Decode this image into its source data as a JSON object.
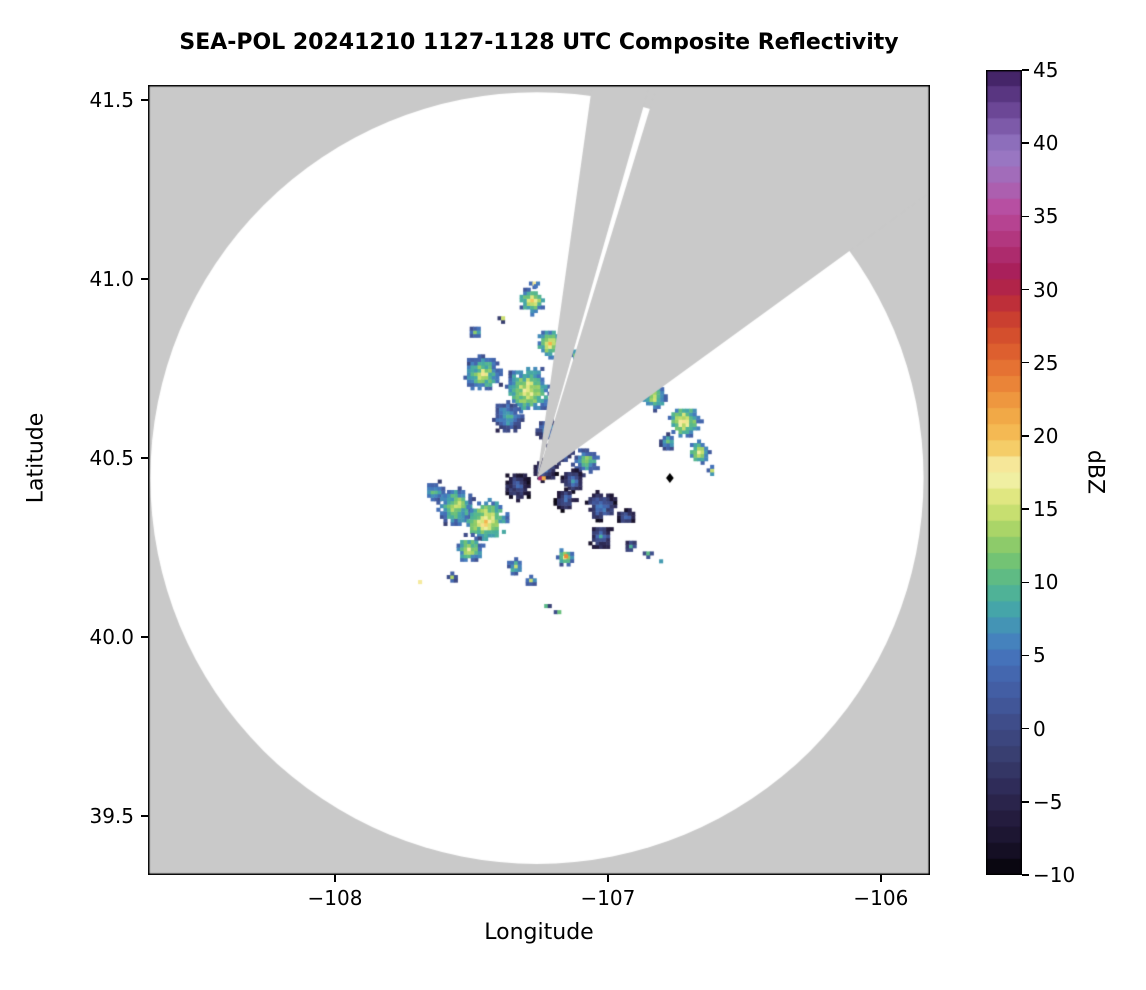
{
  "figure": {
    "title": "SEA-POL 20241210 1127-1128 UTC Composite Reflectivity",
    "background_color": "#ffffff",
    "no_data_color": "#c9c9c9",
    "coverage_color": "#ffffff"
  },
  "axes": {
    "xlabel": "Longitude",
    "ylabel": "Latitude",
    "xlim": [
      -108.685,
      -105.82
    ],
    "ylim": [
      39.335,
      41.542
    ],
    "xticks": [
      {
        "value": -108,
        "label": "−108"
      },
      {
        "value": -107,
        "label": "−107"
      },
      {
        "value": -106,
        "label": "−106"
      }
    ],
    "yticks": [
      {
        "value": 41.5,
        "label": "41.5"
      },
      {
        "value": 41.0,
        "label": "41.0"
      },
      {
        "value": 40.5,
        "label": "40.5"
      },
      {
        "value": 40.0,
        "label": "40.0"
      },
      {
        "value": 39.5,
        "label": "39.5"
      }
    ]
  },
  "colorbar": {
    "label": "dBZ",
    "min": -10,
    "max": 45,
    "ticks": [
      {
        "value": 45,
        "label": "45"
      },
      {
        "value": 40,
        "label": "40"
      },
      {
        "value": 35,
        "label": "35"
      },
      {
        "value": 30,
        "label": "30"
      },
      {
        "value": 25,
        "label": "25"
      },
      {
        "value": 20,
        "label": "20"
      },
      {
        "value": 15,
        "label": "15"
      },
      {
        "value": 10,
        "label": "10"
      },
      {
        "value": 5,
        "label": "5"
      },
      {
        "value": 0,
        "label": "0"
      },
      {
        "value": -5,
        "label": "−5"
      },
      {
        "value": -10,
        "label": "−10"
      }
    ],
    "colormap_stops": [
      [
        -10,
        "#050308"
      ],
      [
        -8,
        "#18122a"
      ],
      [
        -6,
        "#251d40"
      ],
      [
        -4,
        "#2f2c58"
      ],
      [
        -2,
        "#383d6e"
      ],
      [
        0,
        "#3e4a85"
      ],
      [
        2,
        "#42599d"
      ],
      [
        4,
        "#4469b1"
      ],
      [
        5,
        "#4574bb"
      ],
      [
        6,
        "#4583bd"
      ],
      [
        7,
        "#4493b6"
      ],
      [
        8,
        "#44a3ab"
      ],
      [
        9,
        "#4cb09b"
      ],
      [
        10,
        "#59b98a"
      ],
      [
        11,
        "#6ac07a"
      ],
      [
        12,
        "#7fc76d"
      ],
      [
        13,
        "#98cf67"
      ],
      [
        14,
        "#b3d868"
      ],
      [
        15,
        "#cee173"
      ],
      [
        16,
        "#e3e883"
      ],
      [
        17,
        "#f1efa4"
      ],
      [
        18,
        "#f6e89b"
      ],
      [
        19,
        "#f5d06b"
      ],
      [
        20,
        "#f4bd55"
      ],
      [
        21.5,
        "#f1a746"
      ],
      [
        23,
        "#ed8d3b"
      ],
      [
        24.5,
        "#e67433"
      ],
      [
        26,
        "#db5b2e"
      ],
      [
        27.5,
        "#cf452c"
      ],
      [
        29,
        "#bf3038"
      ],
      [
        30,
        "#b32546"
      ],
      [
        31,
        "#a81e57"
      ],
      [
        32.5,
        "#ae2c6f"
      ],
      [
        34,
        "#b53d89"
      ],
      [
        35.5,
        "#b94da0"
      ],
      [
        37,
        "#a962b2"
      ],
      [
        38.5,
        "#9d74c0"
      ],
      [
        39.5,
        "#9579c4"
      ],
      [
        41,
        "#7f5cab"
      ],
      [
        42.5,
        "#684392"
      ],
      [
        44,
        "#4e2c74"
      ],
      [
        45,
        "#3a1d5c"
      ]
    ]
  },
  "chart_data": {
    "type": "heatmap",
    "title": "SEA-POL 20241210 1127-1128 UTC Composite Reflectivity",
    "xlabel": "Longitude",
    "ylabel": "Latitude",
    "units": "dBZ",
    "value_range": [
      -10,
      45
    ],
    "radar": {
      "lon": -107.26,
      "lat": 40.444,
      "range_km": 120
    },
    "blocked_sectors_azimuth_deg": [
      [
        8,
        16
      ],
      [
        17,
        54
      ]
    ],
    "site_marker": {
      "lon": -106.773,
      "lat": 40.444,
      "symbol": "diamond",
      "color": "#000000"
    },
    "echoes": [
      {
        "lon": -107.27,
        "lat": 40.988,
        "radius_deg": 0.015,
        "dbz": 14
      },
      {
        "lon": -107.278,
        "lat": 40.941,
        "radius_deg": 0.045,
        "dbz": 15
      },
      {
        "lon": -107.487,
        "lat": 40.852,
        "radius_deg": 0.02,
        "dbz": 11
      },
      {
        "lon": -107.385,
        "lat": 40.891,
        "radius_deg": 0.014,
        "dbz": 10
      },
      {
        "lon": -107.212,
        "lat": 40.821,
        "radius_deg": 0.05,
        "dbz": 15
      },
      {
        "lon": -107.121,
        "lat": 40.788,
        "radius_deg": 0.022,
        "dbz": 11
      },
      {
        "lon": -107.458,
        "lat": 40.735,
        "radius_deg": 0.065,
        "dbz": 13
      },
      {
        "lon": -107.293,
        "lat": 40.69,
        "radius_deg": 0.08,
        "dbz": 15
      },
      {
        "lon": -107.366,
        "lat": 40.617,
        "radius_deg": 0.055,
        "dbz": 9
      },
      {
        "lon": -107.22,
        "lat": 40.578,
        "radius_deg": 0.04,
        "dbz": 7
      },
      {
        "lon": -107.168,
        "lat": 40.525,
        "radius_deg": 0.05,
        "dbz": 6
      },
      {
        "lon": -107.077,
        "lat": 40.492,
        "radius_deg": 0.045,
        "dbz": 11
      },
      {
        "lon": -107.227,
        "lat": 40.466,
        "radius_deg": 0.045,
        "dbz": 2
      },
      {
        "lon": -107.33,
        "lat": 40.422,
        "radius_deg": 0.055,
        "dbz": 1
      },
      {
        "lon": -107.128,
        "lat": 40.436,
        "radius_deg": 0.04,
        "dbz": 4
      },
      {
        "lon": -107.249,
        "lat": 40.444,
        "radius_deg": 0.012,
        "dbz": 30
      },
      {
        "lon": -106.828,
        "lat": 40.673,
        "radius_deg": 0.045,
        "dbz": 13
      },
      {
        "lon": -106.722,
        "lat": 40.603,
        "radius_deg": 0.055,
        "dbz": 16
      },
      {
        "lon": -106.667,
        "lat": 40.517,
        "radius_deg": 0.038,
        "dbz": 15
      },
      {
        "lon": -106.78,
        "lat": 40.547,
        "radius_deg": 0.028,
        "dbz": 10
      },
      {
        "lon": -106.619,
        "lat": 40.466,
        "radius_deg": 0.018,
        "dbz": 12
      },
      {
        "lon": -107.63,
        "lat": 40.405,
        "radius_deg": 0.04,
        "dbz": 10
      },
      {
        "lon": -107.557,
        "lat": 40.366,
        "radius_deg": 0.065,
        "dbz": 13
      },
      {
        "lon": -107.447,
        "lat": 40.324,
        "radius_deg": 0.075,
        "dbz": 16
      },
      {
        "lon": -107.509,
        "lat": 40.246,
        "radius_deg": 0.05,
        "dbz": 13
      },
      {
        "lon": -107.154,
        "lat": 40.383,
        "radius_deg": 0.04,
        "dbz": 3
      },
      {
        "lon": -107.026,
        "lat": 40.366,
        "radius_deg": 0.05,
        "dbz": 5
      },
      {
        "lon": -106.934,
        "lat": 40.335,
        "radius_deg": 0.028,
        "dbz": 4
      },
      {
        "lon": -107.026,
        "lat": 40.282,
        "radius_deg": 0.045,
        "dbz": 3
      },
      {
        "lon": -106.916,
        "lat": 40.254,
        "radius_deg": 0.02,
        "dbz": 6
      },
      {
        "lon": -107.158,
        "lat": 40.223,
        "radius_deg": 0.03,
        "dbz": 13
      },
      {
        "lon": -107.154,
        "lat": 40.226,
        "radius_deg": 0.01,
        "dbz": 21
      },
      {
        "lon": -107.337,
        "lat": 40.198,
        "radius_deg": 0.028,
        "dbz": 12
      },
      {
        "lon": -107.282,
        "lat": 40.159,
        "radius_deg": 0.018,
        "dbz": 10
      },
      {
        "lon": -107.571,
        "lat": 40.168,
        "radius_deg": 0.016,
        "dbz": 10
      },
      {
        "lon": -107.689,
        "lat": 40.154,
        "radius_deg": 0.011,
        "dbz": 12
      },
      {
        "lon": -107.227,
        "lat": 40.087,
        "radius_deg": 0.014,
        "dbz": 8
      },
      {
        "lon": -107.179,
        "lat": 40.07,
        "radius_deg": 0.012,
        "dbz": 10
      },
      {
        "lon": -106.853,
        "lat": 40.234,
        "radius_deg": 0.014,
        "dbz": 8
      },
      {
        "lon": -106.806,
        "lat": 40.212,
        "radius_deg": 0.011,
        "dbz": 7
      }
    ]
  }
}
